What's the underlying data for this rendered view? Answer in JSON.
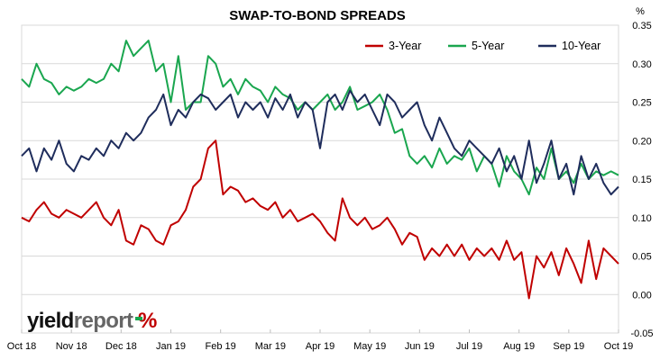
{
  "chart_data": {
    "type": "line",
    "title": "SWAP-TO-BOND SPREADS",
    "y_unit_label": "%",
    "ylim": [
      -0.05,
      0.35
    ],
    "yticks": [
      "0.35",
      "0.30",
      "0.25",
      "0.20",
      "0.15",
      "0.10",
      "0.05",
      "0.00",
      "-0.05"
    ],
    "ytick_values": [
      0.35,
      0.3,
      0.25,
      0.2,
      0.15,
      0.1,
      0.05,
      0.0,
      -0.05
    ],
    "xticks": [
      "Oct 18",
      "Nov 18",
      "Dec 18",
      "Jan 19",
      "Feb 19",
      "Mar 19",
      "Apr 19",
      "May 19",
      "Jun 19",
      "Jul 19",
      "Aug 19",
      "Sep 19",
      "Oct 19"
    ],
    "xlim": [
      0,
      12
    ],
    "grid": "horizontal",
    "legend_position": "top-right",
    "series": [
      {
        "name": "3-Year",
        "color": "#c00000",
        "x": [
          0.0,
          0.15,
          0.3,
          0.45,
          0.6,
          0.75,
          0.9,
          1.05,
          1.2,
          1.35,
          1.5,
          1.65,
          1.8,
          1.95,
          2.1,
          2.25,
          2.4,
          2.55,
          2.7,
          2.85,
          3.0,
          3.15,
          3.3,
          3.45,
          3.6,
          3.75,
          3.9,
          4.05,
          4.2,
          4.35,
          4.5,
          4.65,
          4.8,
          4.95,
          5.1,
          5.25,
          5.4,
          5.55,
          5.7,
          5.85,
          6.0,
          6.15,
          6.3,
          6.45,
          6.6,
          6.75,
          6.9,
          7.05,
          7.2,
          7.35,
          7.5,
          7.65,
          7.8,
          7.95,
          8.1,
          8.25,
          8.4,
          8.55,
          8.7,
          8.85,
          9.0,
          9.15,
          9.3,
          9.45,
          9.6,
          9.75,
          9.9,
          10.05,
          10.2,
          10.35,
          10.5,
          10.65,
          10.8,
          10.95,
          11.1,
          11.25,
          11.4,
          11.55,
          11.7,
          11.85,
          12.0
        ],
        "values": [
          0.1,
          0.095,
          0.11,
          0.12,
          0.105,
          0.1,
          0.11,
          0.105,
          0.1,
          0.11,
          0.12,
          0.1,
          0.09,
          0.11,
          0.07,
          0.065,
          0.09,
          0.085,
          0.07,
          0.065,
          0.09,
          0.095,
          0.11,
          0.14,
          0.15,
          0.19,
          0.2,
          0.13,
          0.14,
          0.135,
          0.12,
          0.125,
          0.115,
          0.11,
          0.12,
          0.1,
          0.11,
          0.095,
          0.1,
          0.105,
          0.095,
          0.08,
          0.07,
          0.125,
          0.1,
          0.09,
          0.1,
          0.085,
          0.09,
          0.1,
          0.085,
          0.065,
          0.08,
          0.075,
          0.045,
          0.06,
          0.05,
          0.065,
          0.05,
          0.065,
          0.045,
          0.06,
          0.05,
          0.06,
          0.045,
          0.07,
          0.045,
          0.055,
          -0.005,
          0.05,
          0.035,
          0.055,
          0.025,
          0.06,
          0.04,
          0.015,
          0.07,
          0.02,
          0.06,
          0.05,
          0.04
        ]
      },
      {
        "name": "5-Year",
        "color": "#1aa64f",
        "x": [
          0.0,
          0.15,
          0.3,
          0.45,
          0.6,
          0.75,
          0.9,
          1.05,
          1.2,
          1.35,
          1.5,
          1.65,
          1.8,
          1.95,
          2.1,
          2.25,
          2.4,
          2.55,
          2.7,
          2.85,
          3.0,
          3.15,
          3.3,
          3.45,
          3.6,
          3.75,
          3.9,
          4.05,
          4.2,
          4.35,
          4.5,
          4.65,
          4.8,
          4.95,
          5.1,
          5.25,
          5.4,
          5.55,
          5.7,
          5.85,
          6.0,
          6.15,
          6.3,
          6.45,
          6.6,
          6.75,
          6.9,
          7.05,
          7.2,
          7.35,
          7.5,
          7.65,
          7.8,
          7.95,
          8.1,
          8.25,
          8.4,
          8.55,
          8.7,
          8.85,
          9.0,
          9.15,
          9.3,
          9.45,
          9.6,
          9.75,
          9.9,
          10.05,
          10.2,
          10.35,
          10.5,
          10.65,
          10.8,
          10.95,
          11.1,
          11.25,
          11.4,
          11.55,
          11.7,
          11.85,
          12.0
        ],
        "values": [
          0.28,
          0.27,
          0.3,
          0.28,
          0.275,
          0.26,
          0.27,
          0.265,
          0.27,
          0.28,
          0.275,
          0.28,
          0.3,
          0.29,
          0.33,
          0.31,
          0.32,
          0.33,
          0.29,
          0.3,
          0.25,
          0.31,
          0.24,
          0.25,
          0.25,
          0.31,
          0.3,
          0.27,
          0.28,
          0.26,
          0.28,
          0.27,
          0.265,
          0.25,
          0.27,
          0.26,
          0.255,
          0.24,
          0.25,
          0.24,
          0.25,
          0.26,
          0.24,
          0.25,
          0.27,
          0.24,
          0.245,
          0.25,
          0.26,
          0.24,
          0.21,
          0.215,
          0.18,
          0.17,
          0.18,
          0.165,
          0.19,
          0.17,
          0.18,
          0.175,
          0.19,
          0.16,
          0.18,
          0.17,
          0.14,
          0.18,
          0.16,
          0.15,
          0.13,
          0.165,
          0.15,
          0.19,
          0.15,
          0.16,
          0.145,
          0.17,
          0.15,
          0.16,
          0.155,
          0.16,
          0.155
        ]
      },
      {
        "name": "10-Year",
        "color": "#1f2d5c",
        "x": [
          0.0,
          0.15,
          0.3,
          0.45,
          0.6,
          0.75,
          0.9,
          1.05,
          1.2,
          1.35,
          1.5,
          1.65,
          1.8,
          1.95,
          2.1,
          2.25,
          2.4,
          2.55,
          2.7,
          2.85,
          3.0,
          3.15,
          3.3,
          3.45,
          3.6,
          3.75,
          3.9,
          4.05,
          4.2,
          4.35,
          4.5,
          4.65,
          4.8,
          4.95,
          5.1,
          5.25,
          5.4,
          5.55,
          5.7,
          5.85,
          6.0,
          6.15,
          6.3,
          6.45,
          6.6,
          6.75,
          6.9,
          7.05,
          7.2,
          7.35,
          7.5,
          7.65,
          7.8,
          7.95,
          8.1,
          8.25,
          8.4,
          8.55,
          8.7,
          8.85,
          9.0,
          9.15,
          9.3,
          9.45,
          9.6,
          9.75,
          9.9,
          10.05,
          10.2,
          10.35,
          10.5,
          10.65,
          10.8,
          10.95,
          11.1,
          11.25,
          11.4,
          11.55,
          11.7,
          11.85,
          12.0
        ],
        "values": [
          0.18,
          0.19,
          0.16,
          0.19,
          0.175,
          0.2,
          0.17,
          0.16,
          0.18,
          0.175,
          0.19,
          0.18,
          0.2,
          0.19,
          0.21,
          0.2,
          0.21,
          0.23,
          0.24,
          0.26,
          0.22,
          0.24,
          0.23,
          0.25,
          0.26,
          0.255,
          0.24,
          0.25,
          0.26,
          0.23,
          0.25,
          0.24,
          0.25,
          0.23,
          0.255,
          0.24,
          0.26,
          0.23,
          0.25,
          0.24,
          0.19,
          0.25,
          0.26,
          0.24,
          0.265,
          0.25,
          0.26,
          0.24,
          0.22,
          0.26,
          0.25,
          0.23,
          0.24,
          0.25,
          0.22,
          0.2,
          0.23,
          0.21,
          0.19,
          0.18,
          0.2,
          0.19,
          0.18,
          0.17,
          0.19,
          0.16,
          0.18,
          0.15,
          0.2,
          0.145,
          0.17,
          0.2,
          0.15,
          0.17,
          0.13,
          0.18,
          0.15,
          0.17,
          0.145,
          0.13,
          0.14
        ]
      }
    ]
  },
  "logo": {
    "word1": "yield",
    "word2": "report",
    "symbol": "%"
  }
}
